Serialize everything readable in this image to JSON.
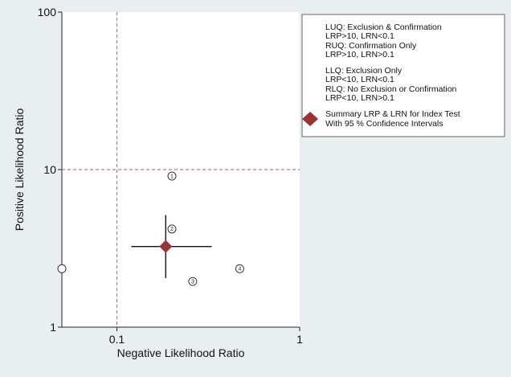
{
  "chart_data": {
    "type": "scatter",
    "title": "",
    "xlabel": "Negative Likelihood Ratio",
    "ylabel": "Positive Likelihood Ratio",
    "x_scale": "log",
    "y_scale": "log",
    "xlim": [
      0.05,
      1
    ],
    "ylim": [
      1,
      100
    ],
    "x_ticks": [
      {
        "value": 0.1,
        "label": "0.1"
      },
      {
        "value": 1,
        "label": "1"
      }
    ],
    "y_ticks": [
      {
        "value": 1,
        "label": "1"
      },
      {
        "value": 10,
        "label": "10"
      },
      {
        "value": 100,
        "label": "100"
      }
    ],
    "reference_lines": {
      "x": 0.1,
      "y": 10,
      "color": "#c0506a"
    },
    "studies": [
      {
        "label": "1",
        "lrn": 0.2,
        "lrp": 9.1
      },
      {
        "label": "2",
        "lrn": 0.2,
        "lrp": 4.2
      },
      {
        "label": "3",
        "lrn": 0.26,
        "lrp": 1.95
      },
      {
        "label": "4",
        "lrn": 0.47,
        "lrp": 2.35
      },
      {
        "label": "",
        "lrn": 0.05,
        "lrp": 2.35
      }
    ],
    "summary": {
      "lrn": 0.185,
      "lrp": 3.25,
      "lrn_ci": [
        0.12,
        0.33
      ],
      "lrp_ci": [
        2.05,
        5.15
      ],
      "color": "#9b3335"
    },
    "legend": {
      "position": "top-right",
      "quadrants": [
        "LUQ: Exclusion & Confirmation",
        "LRP>10, LRN<0.1",
        "RUQ: Confirmation Only",
        "LRP>10, LRN>0.1"
      ],
      "quadrants2": [
        "LLQ: Exclusion Only",
        "LRP<10, LRN<0.1",
        "RLQ: No Exclusion or Confirmation",
        "LRP<10, LRN>0.1"
      ],
      "summary_entry": [
        "Summary LRP & LRN for Index Test",
        "With 95 % Confidence Intervals"
      ]
    }
  }
}
